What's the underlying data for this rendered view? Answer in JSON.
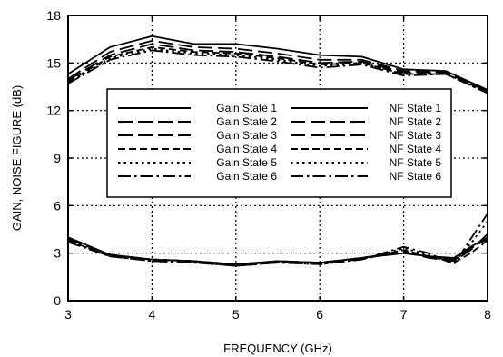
{
  "chart_data": {
    "type": "line",
    "title": "",
    "xlabel": "FREQUENCY (GHz)",
    "ylabel": "GAIN, NOISE FIGURE (dB)",
    "xlim": [
      3,
      8
    ],
    "ylim": [
      0,
      18
    ],
    "x_ticks": [
      3,
      4,
      5,
      6,
      7,
      8
    ],
    "y_ticks": [
      0,
      3,
      6,
      9,
      12,
      15,
      18
    ],
    "grid": true,
    "grid_style": "dotted",
    "legend_placement": "center",
    "series": [
      {
        "name": "Gain State 1",
        "group": "gain",
        "dash": "solid",
        "x": [
          3,
          3.5,
          4,
          4.5,
          5,
          5.5,
          6,
          6.5,
          7,
          7.5,
          8
        ],
        "y": [
          14.3,
          16.0,
          16.7,
          16.2,
          16.2,
          15.9,
          15.5,
          15.4,
          14.6,
          14.5,
          13.3
        ]
      },
      {
        "name": "Gain State 2",
        "group": "gain",
        "dash": "longdash",
        "x": [
          3,
          3.5,
          4,
          4.5,
          5,
          5.5,
          6,
          6.5,
          7,
          7.5,
          8
        ],
        "y": [
          14.0,
          15.7,
          16.4,
          16.0,
          15.9,
          15.6,
          15.2,
          15.2,
          14.5,
          14.4,
          13.3
        ]
      },
      {
        "name": "Gain State 3",
        "group": "gain",
        "dash": "longdash",
        "x": [
          3,
          3.5,
          4,
          4.5,
          5,
          5.5,
          6,
          6.5,
          7,
          7.5,
          8
        ],
        "y": [
          13.9,
          15.5,
          16.2,
          15.8,
          15.7,
          15.4,
          15.0,
          15.1,
          14.4,
          14.4,
          13.2
        ]
      },
      {
        "name": "Gain State 4",
        "group": "gain",
        "dash": "dashed",
        "x": [
          3,
          3.5,
          4,
          4.5,
          5,
          5.5,
          6,
          6.5,
          7,
          7.5,
          8
        ],
        "y": [
          13.8,
          15.4,
          16.0,
          15.7,
          15.6,
          15.3,
          14.9,
          15.0,
          14.3,
          14.3,
          13.2
        ]
      },
      {
        "name": "Gain State 5",
        "group": "gain",
        "dash": "dotted",
        "x": [
          3,
          3.5,
          4,
          4.5,
          5,
          5.5,
          6,
          6.5,
          7,
          7.5,
          8
        ],
        "y": [
          13.7,
          15.3,
          15.9,
          15.6,
          15.5,
          15.2,
          14.8,
          15.0,
          14.3,
          14.3,
          13.1
        ]
      },
      {
        "name": "Gain State 6",
        "group": "gain",
        "dash": "dashdot",
        "x": [
          3,
          3.5,
          4,
          4.5,
          5,
          5.5,
          6,
          6.5,
          7,
          7.5,
          8
        ],
        "y": [
          13.7,
          15.2,
          15.8,
          15.5,
          15.4,
          15.1,
          14.7,
          14.9,
          14.2,
          14.3,
          13.1
        ]
      },
      {
        "name": "NF State 1",
        "group": "nf",
        "dash": "solid",
        "x": [
          3,
          3.5,
          4,
          4.5,
          5,
          5.5,
          6,
          6.5,
          7,
          7.3,
          7.6,
          7.8,
          8
        ],
        "y": [
          4.0,
          2.9,
          2.6,
          2.5,
          2.3,
          2.5,
          2.4,
          2.7,
          3.0,
          2.8,
          2.7,
          3.4,
          4.0
        ]
      },
      {
        "name": "NF State 2",
        "group": "nf",
        "dash": "longdash",
        "x": [
          3,
          3.5,
          4,
          4.5,
          5,
          5.5,
          6,
          6.5,
          7,
          7.3,
          7.6,
          7.8,
          8
        ],
        "y": [
          3.9,
          2.9,
          2.6,
          2.5,
          2.3,
          2.5,
          2.4,
          2.7,
          3.0,
          2.8,
          2.6,
          3.3,
          3.9
        ]
      },
      {
        "name": "NF State 3",
        "group": "nf",
        "dash": "longdash",
        "x": [
          3,
          3.5,
          4,
          4.5,
          5,
          5.5,
          6,
          6.5,
          7,
          7.3,
          7.6,
          7.8,
          8
        ],
        "y": [
          3.9,
          2.9,
          2.6,
          2.5,
          2.2,
          2.5,
          2.4,
          2.7,
          3.1,
          2.7,
          2.5,
          3.2,
          4.2
        ]
      },
      {
        "name": "NF State 4",
        "group": "nf",
        "dash": "dashed",
        "x": [
          3,
          3.5,
          4,
          4.5,
          5,
          5.5,
          6,
          6.5,
          7,
          7.3,
          7.6,
          7.8,
          8
        ],
        "y": [
          3.8,
          2.8,
          2.6,
          2.5,
          2.2,
          2.4,
          2.4,
          2.6,
          3.2,
          2.8,
          2.4,
          3.0,
          3.8
        ]
      },
      {
        "name": "NF State 5",
        "group": "nf",
        "dash": "dotted",
        "x": [
          3,
          3.5,
          4,
          4.5,
          5,
          5.5,
          6,
          6.5,
          7,
          7.3,
          7.6,
          7.8,
          8
        ],
        "y": [
          3.8,
          2.8,
          2.5,
          2.4,
          2.2,
          2.4,
          2.3,
          2.6,
          3.3,
          2.9,
          2.5,
          3.6,
          5.0
        ]
      },
      {
        "name": "NF State 6",
        "group": "nf",
        "dash": "dashdot",
        "x": [
          3,
          3.5,
          4,
          4.5,
          5,
          5.5,
          6,
          6.5,
          7,
          7.3,
          7.6,
          7.8,
          8
        ],
        "y": [
          3.7,
          2.8,
          2.5,
          2.4,
          2.2,
          2.4,
          2.3,
          2.6,
          3.4,
          3.0,
          2.3,
          3.9,
          5.5
        ]
      }
    ]
  }
}
